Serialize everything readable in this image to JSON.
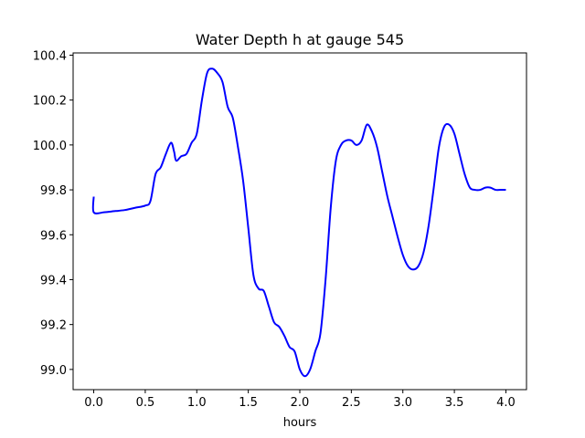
{
  "chart_data": {
    "type": "line",
    "title": "Water Depth h at gauge 545",
    "xlabel": "hours",
    "ylabel": "",
    "xlim": [
      -0.2,
      4.2
    ],
    "ylim": [
      98.91,
      100.41
    ],
    "xticks": [
      0.0,
      0.5,
      1.0,
      1.5,
      2.0,
      2.5,
      3.0,
      3.5,
      4.0
    ],
    "xtick_labels": [
      "0.0",
      "0.5",
      "1.0",
      "1.5",
      "2.0",
      "2.5",
      "3.0",
      "3.5",
      "4.0"
    ],
    "yticks": [
      99.0,
      99.2,
      99.4,
      99.6,
      99.8,
      100.0,
      100.2,
      100.4
    ],
    "ytick_labels": [
      "99.0",
      "99.2",
      "99.4",
      "99.6",
      "99.8",
      "100.0",
      "100.2",
      "100.4"
    ],
    "grid": false,
    "series": [
      {
        "color": "#0000ff",
        "x": [
          0.0,
          0.0,
          0.1,
          0.2,
          0.3,
          0.4,
          0.5,
          0.55,
          0.6,
          0.65,
          0.7,
          0.75,
          0.78,
          0.8,
          0.85,
          0.9,
          0.95,
          1.0,
          1.05,
          1.1,
          1.15,
          1.2,
          1.25,
          1.3,
          1.35,
          1.4,
          1.45,
          1.5,
          1.55,
          1.6,
          1.65,
          1.7,
          1.75,
          1.8,
          1.85,
          1.9,
          1.95,
          2.0,
          2.05,
          2.1,
          2.15,
          2.2,
          2.25,
          2.3,
          2.35,
          2.4,
          2.45,
          2.5,
          2.55,
          2.6,
          2.65,
          2.7,
          2.75,
          2.8,
          2.85,
          2.9,
          2.95,
          3.0,
          3.05,
          3.1,
          3.15,
          3.2,
          3.25,
          3.3,
          3.35,
          3.4,
          3.45,
          3.5,
          3.55,
          3.6,
          3.65,
          3.7,
          3.75,
          3.8,
          3.85,
          3.9,
          3.95,
          4.0
        ],
        "y": [
          99.77,
          99.7,
          99.7,
          99.705,
          99.71,
          99.72,
          99.73,
          99.75,
          99.87,
          99.9,
          99.96,
          100.01,
          99.97,
          99.93,
          99.95,
          99.96,
          100.01,
          100.05,
          100.2,
          100.32,
          100.34,
          100.32,
          100.28,
          100.17,
          100.12,
          99.99,
          99.84,
          99.63,
          99.42,
          99.36,
          99.35,
          99.28,
          99.21,
          99.19,
          99.15,
          99.1,
          99.08,
          99.0,
          98.97,
          99.0,
          99.08,
          99.16,
          99.4,
          99.72,
          99.93,
          100.0,
          100.02,
          100.02,
          100.0,
          100.02,
          100.09,
          100.06,
          99.99,
          99.88,
          99.77,
          99.68,
          99.59,
          99.51,
          99.46,
          99.445,
          99.46,
          99.52,
          99.64,
          99.81,
          99.99,
          100.08,
          100.09,
          100.05,
          99.96,
          99.87,
          99.81,
          99.8,
          99.8,
          99.81,
          99.81,
          99.8,
          99.8,
          99.8
        ]
      }
    ]
  }
}
